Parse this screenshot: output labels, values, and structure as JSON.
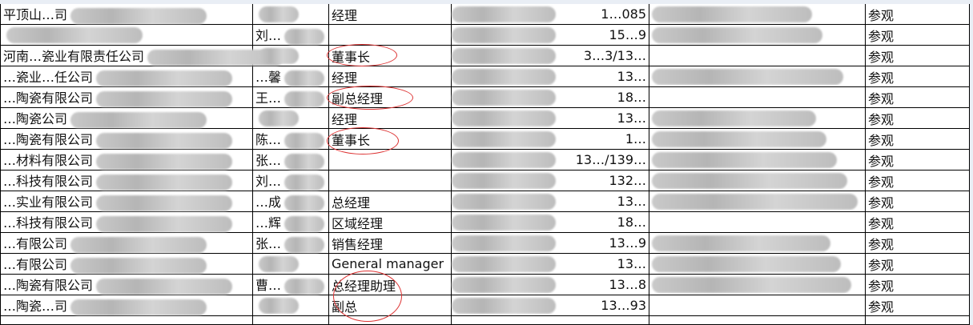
{
  "rows": [
    {
      "company": "平顶山…司",
      "name": "",
      "title": "经理",
      "phone": "1…085",
      "action": "参观"
    },
    {
      "company": "",
      "name": "刘…",
      "title": "",
      "phone": "15…9",
      "action": "参观"
    },
    {
      "company": "河南…瓷业有限责任公司",
      "name": "",
      "title": "董事长",
      "phone": "3…3/13…",
      "action": "参观"
    },
    {
      "company": "…瓷业…任公司",
      "name": "…馨",
      "title": "经理",
      "phone": "13…",
      "action": "参观"
    },
    {
      "company": "…陶瓷有限公司",
      "name": "王…",
      "title": "副总经理",
      "phone": "18…",
      "action": "参观"
    },
    {
      "company": "…陶瓷公司",
      "name": "",
      "title": "经理",
      "phone": "13…",
      "action": "参观"
    },
    {
      "company": "…陶瓷有限公司",
      "name": "陈…",
      "title": "董事长",
      "phone": "1…",
      "action": "参观"
    },
    {
      "company": "…材料有限公司",
      "name": "张…",
      "title": "",
      "phone": "13…/139…",
      "action": "参观"
    },
    {
      "company": "…科技有限公司",
      "name": "刘…",
      "title": "",
      "phone": "132…",
      "action": "参观"
    },
    {
      "company": "…实业有限公司",
      "name": "…成",
      "title": "总经理",
      "phone": "13…",
      "action": "参观"
    },
    {
      "company": "…科技有限公司",
      "name": "…辉",
      "title": "区域经理",
      "phone": "18…",
      "action": "参观"
    },
    {
      "company": "…有限公司",
      "name": "张…",
      "title": "销售经理",
      "phone": "13…9",
      "action": "参观"
    },
    {
      "company": "…有限公司",
      "name": "",
      "title": "General manager",
      "phone": "13…",
      "action": "参观"
    },
    {
      "company": "…陶瓷有限公司",
      "name": "曹…",
      "title": "总经理助理",
      "phone": "13…8",
      "action": "参观"
    },
    {
      "company": "…陶瓷…司",
      "name": "",
      "title": "副总",
      "phone": "13…93",
      "action": "参观"
    }
  ],
  "highlight_color": "#dd3333"
}
